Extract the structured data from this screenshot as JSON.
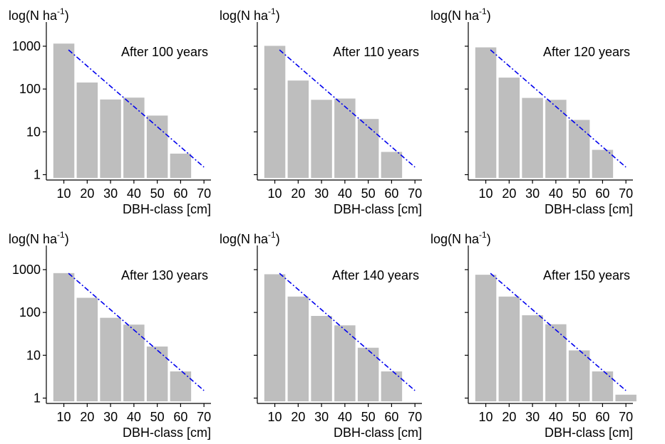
{
  "chart_data": [
    {
      "type": "bar",
      "title": "After 100 years",
      "ylabel_main": "log(N ha",
      "ylabel_sup": "-1",
      "ylabel_close": ")",
      "xlabel": "DBH-class [cm]",
      "y_scale": "log",
      "ylim": [
        0.75,
        2500
      ],
      "xlim": [
        2.5,
        73
      ],
      "x_ticks": [
        10,
        20,
        30,
        40,
        50,
        60,
        70
      ],
      "y_ticks": [
        1,
        10,
        100,
        1000
      ],
      "y_tick_labels": [
        "1",
        "10",
        "100",
        "1000"
      ],
      "categories": [
        10,
        20,
        30,
        40,
        50,
        60
      ],
      "values": [
        1150,
        142,
        57,
        63,
        24,
        3.1
      ],
      "reference_line": {
        "x": [
          12,
          70
        ],
        "y": [
          820,
          1.5
        ],
        "color": "#0000ee",
        "style": "dash-dot"
      },
      "bar_color": "#bebebe",
      "grid": false
    },
    {
      "type": "bar",
      "title": "After 110 years",
      "ylabel_main": "log(N ha",
      "ylabel_sup": "-1",
      "ylabel_close": ")",
      "xlabel": "DBH-class [cm]",
      "y_scale": "log",
      "ylim": [
        0.75,
        2500
      ],
      "xlim": [
        2.5,
        73
      ],
      "x_ticks": [
        10,
        20,
        30,
        40,
        50,
        60,
        70
      ],
      "y_ticks": [
        1,
        10,
        100,
        1000
      ],
      "y_tick_labels": [
        "",
        "",
        "",
        ""
      ],
      "categories": [
        10,
        20,
        30,
        40,
        50,
        60
      ],
      "values": [
        1020,
        158,
        56,
        60,
        20,
        3.4
      ],
      "reference_line": {
        "x": [
          12,
          70
        ],
        "y": [
          820,
          1.5
        ],
        "color": "#0000ee",
        "style": "dash-dot"
      },
      "bar_color": "#bebebe",
      "grid": false
    },
    {
      "type": "bar",
      "title": "After 120 years",
      "ylabel_main": "log(N ha",
      "ylabel_sup": "-1",
      "ylabel_close": ")",
      "xlabel": "DBH-class [cm]",
      "y_scale": "log",
      "ylim": [
        0.75,
        2500
      ],
      "xlim": [
        2.5,
        73
      ],
      "x_ticks": [
        10,
        20,
        30,
        40,
        50,
        60,
        70
      ],
      "y_ticks": [
        1,
        10,
        100,
        1000
      ],
      "y_tick_labels": [
        "",
        "",
        "",
        ""
      ],
      "categories": [
        10,
        20,
        30,
        40,
        50,
        60
      ],
      "values": [
        940,
        185,
        62,
        56,
        19,
        3.8
      ],
      "reference_line": {
        "x": [
          12,
          70
        ],
        "y": [
          820,
          1.5
        ],
        "color": "#0000ee",
        "style": "dash-dot"
      },
      "bar_color": "#bebebe",
      "grid": false
    },
    {
      "type": "bar",
      "title": "After 130 years",
      "ylabel_main": "log(N ha",
      "ylabel_sup": "-1",
      "ylabel_close": ")",
      "xlabel": "DBH-class [cm]",
      "y_scale": "log",
      "ylim": [
        0.75,
        2500
      ],
      "xlim": [
        2.5,
        73
      ],
      "x_ticks": [
        10,
        20,
        30,
        40,
        50,
        60,
        70
      ],
      "y_ticks": [
        1,
        10,
        100,
        1000
      ],
      "y_tick_labels": [
        "1",
        "10",
        "100",
        "1000"
      ],
      "categories": [
        10,
        20,
        30,
        40,
        50,
        60
      ],
      "values": [
        830,
        220,
        75,
        52,
        16,
        4.2
      ],
      "reference_line": {
        "x": [
          12,
          70
        ],
        "y": [
          820,
          1.5
        ],
        "color": "#0000ee",
        "style": "dash-dot"
      },
      "bar_color": "#bebebe",
      "grid": false
    },
    {
      "type": "bar",
      "title": "After 140 years",
      "ylabel_main": "log(N ha",
      "ylabel_sup": "-1",
      "ylabel_close": ")",
      "xlabel": "DBH-class [cm]",
      "y_scale": "log",
      "ylim": [
        0.75,
        2500
      ],
      "xlim": [
        2.5,
        73
      ],
      "x_ticks": [
        10,
        20,
        30,
        40,
        50,
        60,
        70
      ],
      "y_ticks": [
        1,
        10,
        100,
        1000
      ],
      "y_tick_labels": [
        "",
        "",
        "",
        ""
      ],
      "categories": [
        10,
        20,
        30,
        40,
        50,
        60
      ],
      "values": [
        780,
        235,
        83,
        50,
        15,
        4.2
      ],
      "reference_line": {
        "x": [
          12,
          70
        ],
        "y": [
          820,
          1.5
        ],
        "color": "#0000ee",
        "style": "dash-dot"
      },
      "bar_color": "#bebebe",
      "grid": false
    },
    {
      "type": "bar",
      "title": "After 150 years",
      "ylabel_main": "log(N ha",
      "ylabel_sup": "-1",
      "ylabel_close": ")",
      "xlabel": "DBH-class [cm]",
      "y_scale": "log",
      "ylim": [
        0.75,
        2500
      ],
      "xlim": [
        2.5,
        73
      ],
      "x_ticks": [
        10,
        20,
        30,
        40,
        50,
        60,
        70
      ],
      "y_ticks": [
        1,
        10,
        100,
        1000
      ],
      "y_tick_labels": [
        "",
        "",
        "",
        ""
      ],
      "categories": [
        10,
        20,
        30,
        40,
        50,
        60,
        70
      ],
      "values": [
        760,
        235,
        86,
        53,
        13,
        4.2,
        1.2
      ],
      "reference_line": {
        "x": [
          12,
          70
        ],
        "y": [
          820,
          1.5
        ],
        "color": "#0000ee",
        "style": "dash-dot"
      },
      "bar_color": "#bebebe",
      "grid": false
    }
  ]
}
